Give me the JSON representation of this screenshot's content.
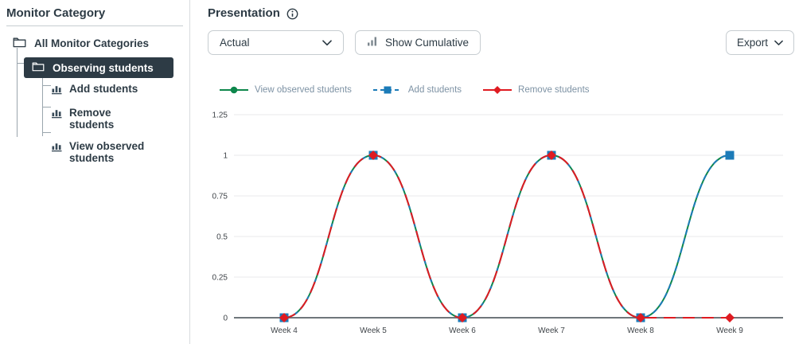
{
  "sidebar": {
    "title": "Monitor Category",
    "tree": {
      "root": {
        "label": "All Monitor Categories"
      },
      "selected": {
        "label": "Observing students"
      },
      "children": [
        {
          "label": "Add students"
        },
        {
          "label": "Remove students"
        },
        {
          "label": "View observed students"
        }
      ]
    }
  },
  "main": {
    "title": "Presentation",
    "controls": {
      "presentation_value": "Actual",
      "cumulative_label": "Show Cumulative",
      "export_label": "Export"
    }
  },
  "chart_data": {
    "type": "line",
    "curve": "smooth",
    "x": [
      "Week 4",
      "Week 5",
      "Week 6",
      "Week 7",
      "Week 8",
      "Week 9"
    ],
    "series": [
      {
        "name": "View observed students",
        "color": "#0E874C",
        "marker": "circle",
        "dash": null,
        "legend_dash": null,
        "values": [
          0,
          1,
          0,
          1,
          0,
          1
        ]
      },
      {
        "name": "Add students",
        "color": "#1C7BB8",
        "marker": "square",
        "dash": "7 5",
        "legend_dash": "5 4",
        "values": [
          0,
          1,
          0,
          1,
          0,
          1
        ]
      },
      {
        "name": "Remove students",
        "color": "#DF1B21",
        "marker": "diamond",
        "dash": "15 9",
        "legend_dash": null,
        "values": [
          0,
          1,
          0,
          1,
          0,
          0
        ]
      }
    ],
    "yticks": [
      0,
      0.25,
      0.5,
      0.75,
      1,
      1.25
    ],
    "ylim": [
      0,
      1.25
    ],
    "grid": true,
    "legend_position": "top-left"
  },
  "colors": {
    "selected_row_bg": "#2D3B45",
    "text_dark": "#2D3B45",
    "border": "#C7CDD1",
    "legend_text": "#7D92A4",
    "grid_line": "#E9E9EB",
    "axis_line": "#6F767B",
    "tick_text": "#3F4449"
  }
}
